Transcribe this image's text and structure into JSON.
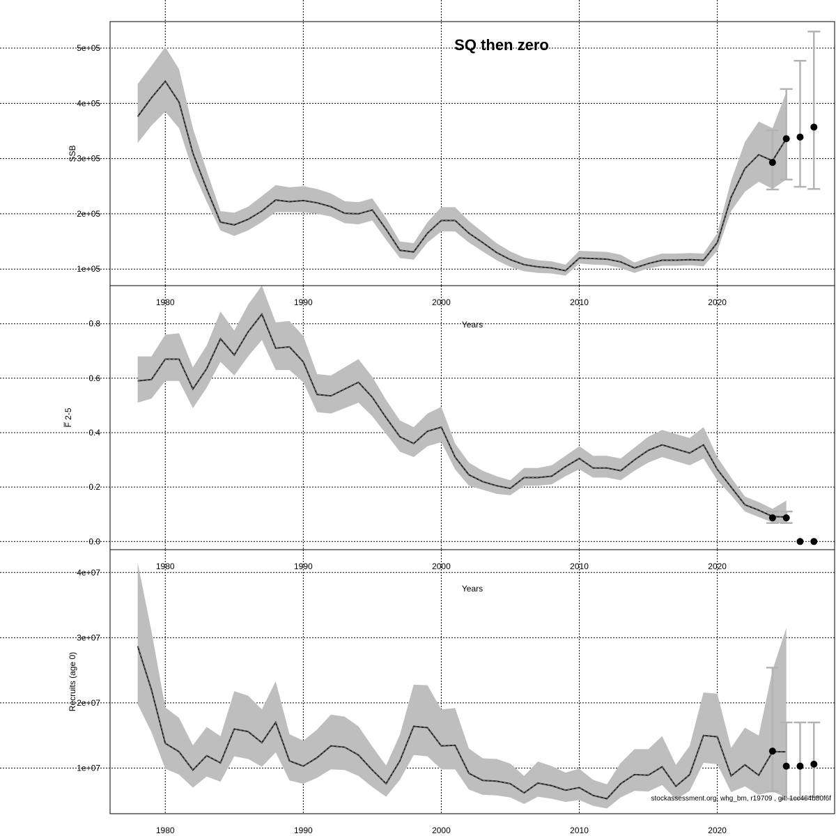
{
  "title": "SQ then zero",
  "footnote": "stockassessment.org, whg_bm, r19709 , git: 1cc464b80f6f",
  "colors": {
    "band": "#bebebe",
    "line": "#000000",
    "grid": "#000000",
    "errorbar": "#b3b3b3"
  },
  "chart_data": [
    {
      "type": "line",
      "name": "ssb",
      "ylabel": "SSB",
      "xlabel": "Years",
      "xlim": [
        1976,
        2028.5
      ],
      "ylim": [
        70000,
        548000
      ],
      "xticks": [
        1980,
        1990,
        2000,
        2010,
        2020
      ],
      "yticks": [
        100000,
        200000,
        300000,
        400000,
        500000
      ],
      "ytick_labels": [
        "1e+05",
        "2e+05",
        "3e+05",
        "4e+05",
        "5e+05"
      ],
      "years": [
        1978,
        1979,
        1980,
        1981,
        1982,
        1983,
        1984,
        1985,
        1986,
        1987,
        1988,
        1989,
        1990,
        1991,
        1992,
        1993,
        1994,
        1995,
        1996,
        1997,
        1998,
        1999,
        2000,
        2001,
        2002,
        2003,
        2004,
        2005,
        2006,
        2007,
        2008,
        2009,
        2010,
        2011,
        2012,
        2013,
        2014,
        2015,
        2016,
        2017,
        2018,
        2019,
        2020,
        2021,
        2022,
        2023,
        2024,
        2025
      ],
      "estimate": [
        376000,
        410000,
        440000,
        402000,
        310000,
        245000,
        185000,
        180000,
        190000,
        205000,
        225000,
        222000,
        224000,
        220000,
        213000,
        201000,
        200000,
        207000,
        172000,
        134000,
        131000,
        165000,
        188000,
        188000,
        165000,
        148000,
        130000,
        117000,
        108000,
        104000,
        102000,
        97000,
        120000,
        119000,
        118000,
        113000,
        102000,
        110000,
        116000,
        116000,
        117000,
        116000,
        148000,
        230000,
        282000,
        307000,
        296000,
        336000
      ],
      "lower": [
        328000,
        360000,
        385000,
        355000,
        278000,
        222000,
        170000,
        160000,
        170000,
        185000,
        203000,
        203000,
        203000,
        200000,
        195000,
        183000,
        181000,
        188000,
        153000,
        120000,
        117000,
        148000,
        168000,
        168000,
        148000,
        132000,
        116000,
        104000,
        96000,
        93000,
        92000,
        88000,
        110000,
        108000,
        107000,
        102000,
        93000,
        101000,
        106000,
        106000,
        107000,
        105000,
        133000,
        205000,
        240000,
        258000,
        245000,
        262000
      ],
      "upper": [
        435000,
        468000,
        502000,
        462000,
        355000,
        278000,
        205000,
        202000,
        213000,
        232000,
        252000,
        248000,
        250000,
        245000,
        237000,
        223000,
        221000,
        228000,
        192000,
        150000,
        147000,
        185000,
        212000,
        212000,
        187000,
        167000,
        147000,
        132000,
        121000,
        116000,
        114000,
        108000,
        133000,
        132000,
        131000,
        126000,
        112000,
        121000,
        128000,
        128000,
        129000,
        128000,
        165000,
        260000,
        330000,
        367000,
        355000,
        420000
      ],
      "forecast_points": [
        {
          "year": 2024,
          "value": 293000,
          "low": 244000,
          "high": 351000
        },
        {
          "year": 2025,
          "value": 336000,
          "low": 262000,
          "high": 426000
        },
        {
          "year": 2026,
          "value": 339000,
          "low": 249000,
          "high": 477000
        },
        {
          "year": 2027,
          "value": 357000,
          "low": 245000,
          "high": 530000
        }
      ]
    },
    {
      "type": "line",
      "name": "fbar",
      "ylabel": "F̅ 2-5",
      "xlabel": "Years",
      "xlim": [
        1976,
        2028.5
      ],
      "ylim": [
        -0.03,
        0.94
      ],
      "xticks": [
        1980,
        1990,
        2000,
        2010,
        2020
      ],
      "yticks": [
        0,
        0.2,
        0.4,
        0.6,
        0.8
      ],
      "ytick_labels": [
        "0.0",
        "0.2",
        "0.4",
        "0.6",
        "0.8"
      ],
      "years": [
        1978,
        1979,
        1980,
        1981,
        1982,
        1983,
        1984,
        1985,
        1986,
        1987,
        1988,
        1989,
        1990,
        1991,
        1992,
        1993,
        1994,
        1995,
        1996,
        1997,
        1998,
        1999,
        2000,
        2001,
        2002,
        2003,
        2004,
        2005,
        2006,
        2007,
        2008,
        2009,
        2010,
        2011,
        2012,
        2013,
        2014,
        2015,
        2016,
        2017,
        2018,
        2019,
        2020,
        2021,
        2022,
        2023,
        2024,
        2025
      ],
      "estimate": [
        0.59,
        0.595,
        0.67,
        0.67,
        0.56,
        0.635,
        0.745,
        0.685,
        0.77,
        0.835,
        0.71,
        0.715,
        0.66,
        0.54,
        0.535,
        0.56,
        0.585,
        0.53,
        0.455,
        0.385,
        0.36,
        0.405,
        0.42,
        0.31,
        0.245,
        0.22,
        0.205,
        0.195,
        0.235,
        0.235,
        0.24,
        0.275,
        0.305,
        0.27,
        0.27,
        0.26,
        0.3,
        0.335,
        0.355,
        0.34,
        0.325,
        0.355,
        0.265,
        0.2,
        0.135,
        0.115,
        0.092,
        0.09
      ],
      "lower": [
        0.51,
        0.525,
        0.59,
        0.59,
        0.49,
        0.565,
        0.66,
        0.61,
        0.68,
        0.74,
        0.63,
        0.63,
        0.585,
        0.475,
        0.47,
        0.49,
        0.51,
        0.46,
        0.395,
        0.33,
        0.31,
        0.35,
        0.365,
        0.265,
        0.205,
        0.19,
        0.175,
        0.17,
        0.205,
        0.205,
        0.21,
        0.24,
        0.265,
        0.235,
        0.235,
        0.225,
        0.26,
        0.29,
        0.31,
        0.295,
        0.28,
        0.305,
        0.225,
        0.17,
        0.11,
        0.09,
        0.07,
        0.065
      ],
      "upper": [
        0.68,
        0.68,
        0.76,
        0.765,
        0.64,
        0.72,
        0.845,
        0.775,
        0.87,
        0.94,
        0.805,
        0.81,
        0.755,
        0.615,
        0.61,
        0.64,
        0.67,
        0.605,
        0.52,
        0.445,
        0.42,
        0.47,
        0.495,
        0.36,
        0.29,
        0.26,
        0.24,
        0.225,
        0.27,
        0.27,
        0.28,
        0.315,
        0.35,
        0.315,
        0.315,
        0.305,
        0.345,
        0.385,
        0.41,
        0.395,
        0.38,
        0.42,
        0.31,
        0.235,
        0.165,
        0.145,
        0.12,
        0.15
      ],
      "forecast_points": [
        {
          "year": 2024,
          "value": 0.087,
          "low": 0.068,
          "high": 0.11
        },
        {
          "year": 2025,
          "value": 0.087,
          "low": 0.068,
          "high": 0.11
        },
        {
          "year": 2026,
          "value": 0.0,
          "low": 0.0,
          "high": 0.0
        },
        {
          "year": 2027,
          "value": 0.0,
          "low": 0.0,
          "high": 0.0
        }
      ]
    },
    {
      "type": "line",
      "name": "recruits",
      "ylabel": "Recruits (age 0)",
      "xlabel": "",
      "xlim": [
        1976,
        2028.5
      ],
      "ylim": [
        3000000,
        43500000
      ],
      "xticks": [
        1980,
        1990,
        2000,
        2010,
        2020
      ],
      "yticks": [
        10000000,
        20000000,
        30000000,
        40000000
      ],
      "ytick_labels": [
        "1e+07",
        "2e+07",
        "3e+07",
        "4e+07"
      ],
      "years": [
        1978,
        1979,
        1980,
        1981,
        1982,
        1983,
        1984,
        1985,
        1986,
        1987,
        1988,
        1989,
        1990,
        1991,
        1992,
        1993,
        1994,
        1995,
        1996,
        1997,
        1998,
        1999,
        2000,
        2001,
        2002,
        2003,
        2004,
        2005,
        2006,
        2007,
        2008,
        2009,
        2010,
        2011,
        2012,
        2013,
        2014,
        2015,
        2016,
        2017,
        2018,
        2019,
        2020,
        2021,
        2022,
        2023,
        2024,
        2025
      ],
      "estimate": [
        28700000,
        22000000,
        13800000,
        12500000,
        9700000,
        11900000,
        10800000,
        16000000,
        15600000,
        13900000,
        17000000,
        11100000,
        10300000,
        11600000,
        13400000,
        13200000,
        12000000,
        9700000,
        7600000,
        11100000,
        16400000,
        16200000,
        13400000,
        13500000,
        9200000,
        8100000,
        8000000,
        7600000,
        6200000,
        7700000,
        7300000,
        6600000,
        7000000,
        5800000,
        5300000,
        7600000,
        9000000,
        8900000,
        10200000,
        7200000,
        9000000,
        15000000,
        14800000,
        8800000,
        10500000,
        8900000,
        12500000,
        12500000
      ],
      "lower": [
        19800000,
        15500000,
        9900000,
        9000000,
        7000000,
        8700000,
        7900000,
        11800000,
        11400000,
        10200000,
        12400000,
        8100000,
        7600000,
        8500000,
        9800000,
        9700000,
        8800000,
        7100000,
        5600000,
        8200000,
        12000000,
        11800000,
        9800000,
        9800000,
        6700000,
        5900000,
        5800000,
        5500000,
        4500000,
        5600000,
        5300000,
        4800000,
        5100000,
        4200000,
        3800000,
        5500000,
        6500000,
        6400000,
        7400000,
        5200000,
        6500000,
        10800000,
        10600000,
        6300000,
        7200000,
        5900000,
        6400000,
        5500000
      ],
      "upper": [
        41500000,
        31000000,
        19300000,
        17700000,
        13500000,
        16300000,
        14900000,
        21800000,
        21100000,
        19000000,
        23300000,
        15200000,
        14200000,
        15900000,
        18200000,
        17900000,
        16400000,
        13300000,
        10400000,
        15100000,
        22800000,
        22700000,
        19000000,
        19200000,
        13000000,
        11500000,
        11400000,
        10700000,
        8800000,
        11000000,
        10300000,
        9300000,
        9900000,
        8200000,
        7500000,
        10800000,
        12900000,
        12900000,
        14900000,
        10500000,
        13400000,
        21600000,
        21400000,
        13100000,
        16200000,
        15000000,
        25000000,
        31500000
      ],
      "forecast_points": [
        {
          "year": 2024,
          "value": 12600000,
          "low": 6400000,
          "high": 25400000
        },
        {
          "year": 2025,
          "value": 10300000,
          "low": 5300000,
          "high": 17000000
        },
        {
          "year": 2026,
          "value": 10300000,
          "low": 5300000,
          "high": 17000000
        },
        {
          "year": 2027,
          "value": 10600000,
          "low": 5600000,
          "high": 17000000
        }
      ]
    }
  ]
}
